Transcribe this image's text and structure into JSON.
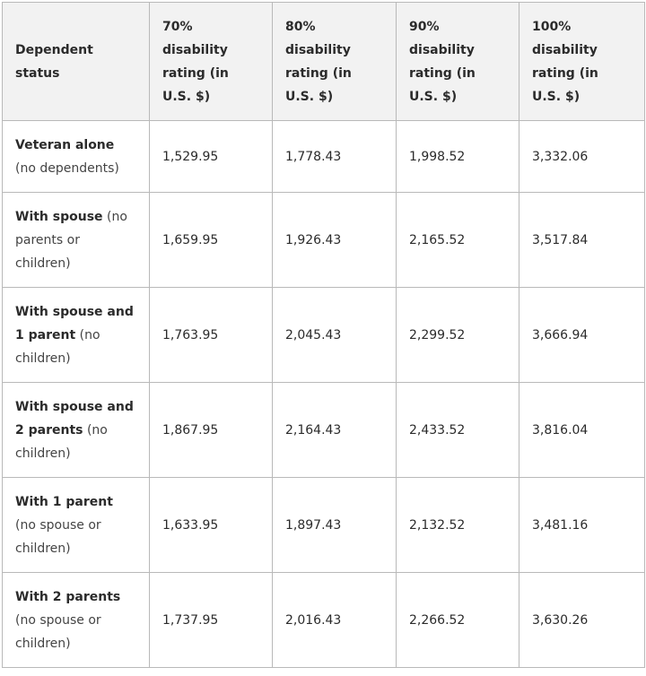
{
  "table": {
    "header": [
      "Dependent status",
      "70% disability rating (in U.S. $)",
      "80% disability rating (in U.S. $)",
      "90% disability rating (in U.S. $)",
      "100% disability rating (in U.S. $)"
    ],
    "rows": [
      {
        "label": {
          "bold": "Veteran alone",
          "rest": "(no dependents)"
        },
        "values": [
          "1,529.95",
          "1,778.43",
          "1,998.52",
          "3,332.06"
        ]
      },
      {
        "label": {
          "bold": "With spouse",
          "rest": "(no parents or children)"
        },
        "values": [
          "1,659.95",
          "1,926.43",
          "2,165.52",
          "3,517.84"
        ]
      },
      {
        "label": {
          "bold": "With spouse and 1 parent",
          "rest": "(no children)"
        },
        "values": [
          "1,763.95",
          "2,045.43",
          "2,299.52",
          "3,666.94"
        ]
      },
      {
        "label": {
          "bold": "With spouse and 2 parents",
          "rest": "(no children)"
        },
        "values": [
          "1,867.95",
          "2,164.43",
          "2,433.52",
          "3,816.04"
        ]
      },
      {
        "label": {
          "bold": "With 1 parent",
          "rest": "(no spouse or children)"
        },
        "values": [
          "1,633.95",
          "1,897.43",
          "2,132.52",
          "3,481.16"
        ]
      },
      {
        "label": {
          "bold": "With 2 parents",
          "rest": "(no spouse or children)"
        },
        "values": [
          "1,737.95",
          "2,016.43",
          "2,266.52",
          "3,630.26"
        ]
      }
    ]
  }
}
